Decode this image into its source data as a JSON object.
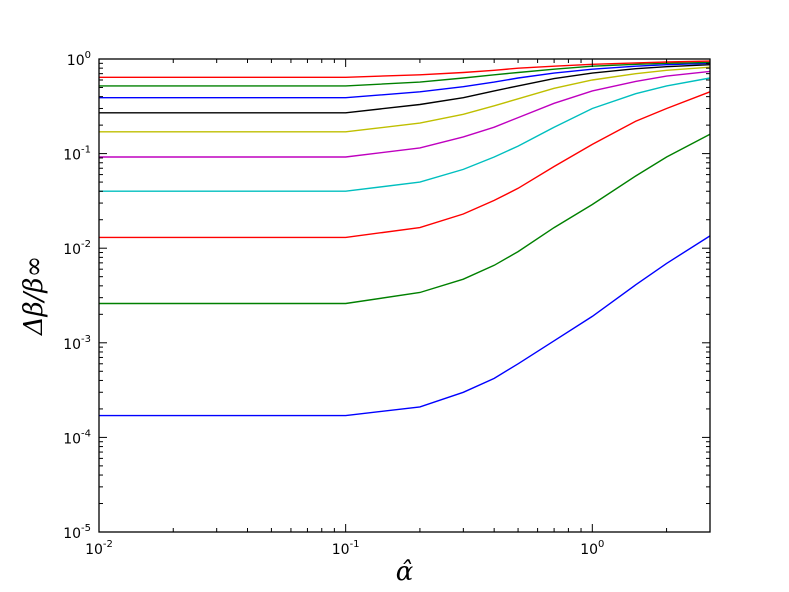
{
  "chart_data": {
    "type": "line",
    "title": "",
    "xlabel": "α̂",
    "ylabel": "Δβ/β∞",
    "xscale": "log",
    "yscale": "log",
    "xlim": [
      0.01,
      3.0
    ],
    "ylim": [
      1e-05,
      1.0
    ],
    "grid": false,
    "x_ticks": [
      {
        "value": 0.01,
        "base": "10",
        "exp": "-2"
      },
      {
        "value": 0.1,
        "base": "10",
        "exp": "-1"
      },
      {
        "value": 1,
        "base": "10",
        "exp": "0"
      }
    ],
    "y_ticks": [
      {
        "value": 1e-05,
        "base": "10",
        "exp": "-5"
      },
      {
        "value": 0.0001,
        "base": "10",
        "exp": "-4"
      },
      {
        "value": 0.001,
        "base": "10",
        "exp": "-3"
      },
      {
        "value": 0.01,
        "base": "10",
        "exp": "-2"
      },
      {
        "value": 0.1,
        "base": "10",
        "exp": "-1"
      },
      {
        "value": 1,
        "base": "10",
        "exp": "0"
      }
    ],
    "x": [
      0.01,
      0.1,
      0.2,
      0.3,
      0.4,
      0.5,
      0.7,
      1.0,
      1.5,
      2.0,
      3.0
    ],
    "series": [
      {
        "color": "#0000ff",
        "values": [
          0.00017,
          0.00017,
          0.00021,
          0.0003,
          0.00042,
          0.0006,
          0.00105,
          0.0019,
          0.0041,
          0.0069,
          0.0135
        ]
      },
      {
        "color": "#008000",
        "values": [
          0.0026,
          0.0026,
          0.0034,
          0.0047,
          0.0066,
          0.0092,
          0.0165,
          0.029,
          0.058,
          0.092,
          0.16
        ]
      },
      {
        "color": "#ff0000",
        "values": [
          0.013,
          0.013,
          0.0165,
          0.023,
          0.032,
          0.043,
          0.073,
          0.125,
          0.22,
          0.3,
          0.45
        ]
      },
      {
        "color": "#00bfbf",
        "values": [
          0.04,
          0.04,
          0.05,
          0.068,
          0.092,
          0.12,
          0.19,
          0.3,
          0.43,
          0.52,
          0.63
        ]
      },
      {
        "color": "#bf00bf",
        "values": [
          0.092,
          0.092,
          0.115,
          0.15,
          0.19,
          0.24,
          0.34,
          0.46,
          0.58,
          0.66,
          0.74
        ]
      },
      {
        "color": "#bfbf00",
        "values": [
          0.17,
          0.17,
          0.21,
          0.26,
          0.32,
          0.38,
          0.49,
          0.6,
          0.7,
          0.76,
          0.82
        ]
      },
      {
        "color": "#000000",
        "values": [
          0.27,
          0.27,
          0.33,
          0.39,
          0.46,
          0.52,
          0.62,
          0.71,
          0.79,
          0.83,
          0.87
        ]
      },
      {
        "color": "#0000ff",
        "values": [
          0.39,
          0.39,
          0.45,
          0.51,
          0.57,
          0.63,
          0.71,
          0.78,
          0.84,
          0.87,
          0.9
        ]
      },
      {
        "color": "#008000",
        "values": [
          0.52,
          0.52,
          0.57,
          0.63,
          0.68,
          0.72,
          0.78,
          0.84,
          0.88,
          0.9,
          0.92
        ]
      },
      {
        "color": "#ff0000",
        "values": [
          0.64,
          0.64,
          0.68,
          0.72,
          0.76,
          0.8,
          0.84,
          0.88,
          0.91,
          0.93,
          0.95
        ]
      }
    ]
  }
}
